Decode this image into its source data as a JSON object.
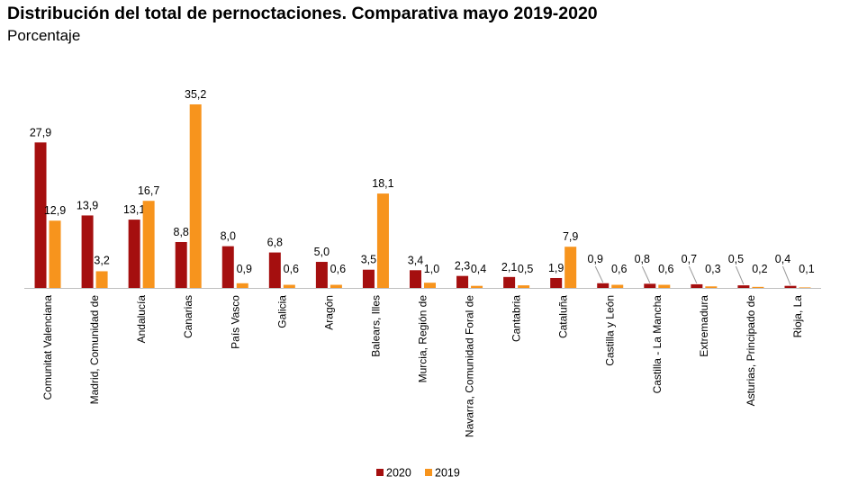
{
  "chart_data": {
    "type": "bar",
    "title": "Distribución del total de pernoctaciones. Comparativa mayo 2019-2020",
    "subtitle": "Porcentaje",
    "categories": [
      "Comunitat Valenciana",
      "Madrid, Comunidad de",
      "Andalucía",
      "Canarias",
      "País Vasco",
      "Galicia",
      "Aragón",
      "Balears, Illes",
      "Murcia, Región de",
      "Navarra, Comunidad Foral de",
      "Cantabria",
      "Cataluña",
      "Castilla y León",
      "Castilla - La Mancha",
      "Extremadura",
      "Asturias, Principado de",
      "Rioja, La"
    ],
    "series": [
      {
        "name": "2020",
        "color": "#a50f0f",
        "values": [
          27.9,
          13.9,
          13.1,
          8.8,
          8.0,
          6.8,
          5.0,
          3.5,
          3.4,
          2.3,
          2.1,
          1.9,
          0.9,
          0.8,
          0.7,
          0.5,
          0.4
        ],
        "labels": [
          "27,9",
          "13,9",
          "13,1",
          "8,8",
          "8,0",
          "6,8",
          "5,0",
          "3,5",
          "3,4",
          "2,3",
          "2,1",
          "1,9",
          "0,9",
          "0,8",
          "0,7",
          "0,5",
          "0,4"
        ]
      },
      {
        "name": "2019",
        "color": "#f7941d",
        "values": [
          12.9,
          3.2,
          16.7,
          35.2,
          0.9,
          0.6,
          0.6,
          18.1,
          1.0,
          0.4,
          0.5,
          7.9,
          0.6,
          0.6,
          0.3,
          0.2,
          0.1
        ],
        "labels": [
          "12,9",
          "3,2",
          "16,7",
          "35,2",
          "0,9",
          "0,6",
          "0,6",
          "18,1",
          "1,0",
          "0,4",
          "0,5",
          "7,9",
          "0,6",
          "0,6",
          "0,3",
          "0,2",
          "0,1"
        ]
      }
    ],
    "ylim": [
      0,
      35.2
    ],
    "grid": false,
    "legend": "bottom-center"
  }
}
